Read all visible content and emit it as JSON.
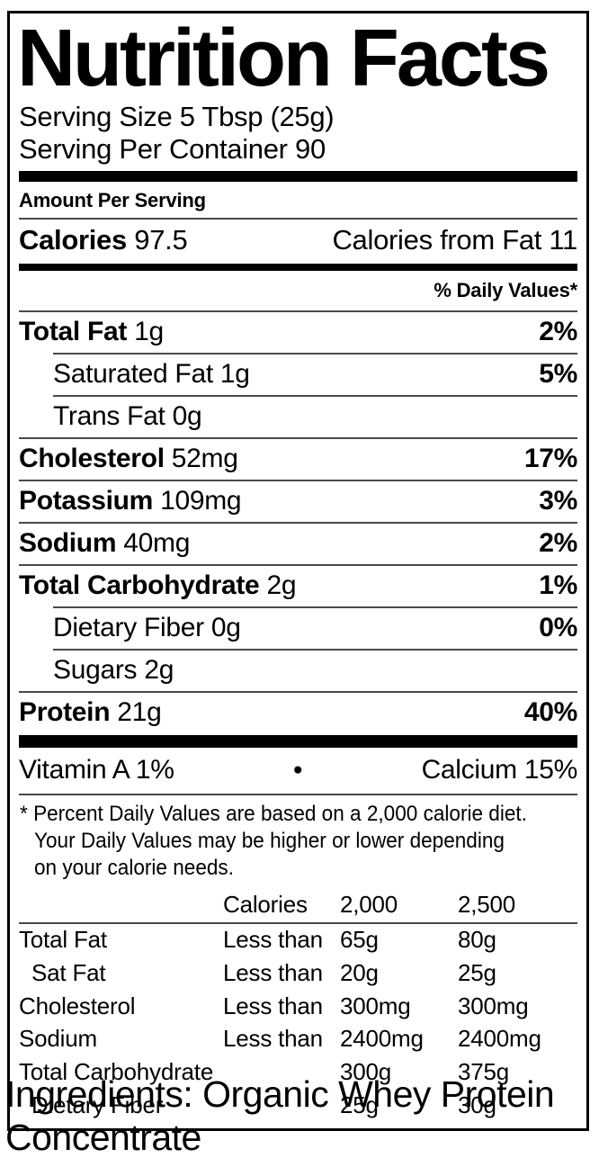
{
  "colors": {
    "text": "#000000",
    "background": "#ffffff",
    "bars": "#000000",
    "hairline": "#4a4a4a"
  },
  "header": {
    "title": "Nutrition Facts",
    "serving_size": "Serving Size 5 Tbsp (25g)",
    "servings_per_container": "Serving Per Container 90"
  },
  "amount_per_serving": "Amount Per Serving",
  "calories": {
    "label": "Calories",
    "value": "97.5",
    "from_fat": "Calories from Fat 11"
  },
  "daily_values_header": "% Daily Values*",
  "nutrients": [
    {
      "label": "Total Fat",
      "amount": "1g",
      "dv": "2%",
      "bold": true,
      "indent": false
    },
    {
      "label": "Saturated Fat",
      "amount": "1g",
      "dv": "5%",
      "bold": false,
      "indent": true
    },
    {
      "label": "Trans Fat",
      "amount": "0g",
      "dv": "",
      "bold": false,
      "indent": true
    },
    {
      "label": "Cholesterol",
      "amount": "52mg",
      "dv": "17%",
      "bold": true,
      "indent": false
    },
    {
      "label": "Potassium",
      "amount": "109mg",
      "dv": "3%",
      "bold": true,
      "indent": false
    },
    {
      "label": "Sodium",
      "amount": "40mg",
      "dv": "2%",
      "bold": true,
      "indent": false
    },
    {
      "label": "Total Carbohydrate",
      "amount": "2g",
      "dv": "1%",
      "bold": true,
      "indent": false
    },
    {
      "label": "Dietary Fiber",
      "amount": "0g",
      "dv": "0%",
      "bold": false,
      "indent": true
    },
    {
      "label": "Sugars",
      "amount": "2g",
      "dv": "",
      "bold": false,
      "indent": true
    },
    {
      "label": "Protein",
      "amount": "21g",
      "dv": "40%",
      "bold": true,
      "indent": false
    }
  ],
  "micronutrients": {
    "left": "Vitamin A 1%",
    "separator": "●",
    "right": "Calcium 15%"
  },
  "footnote": {
    "line1": "* Percent Daily Values are based on a 2,000 calorie diet.",
    "line2": "Your Daily Values may be higher or lower depending",
    "line3": "on your calorie needs."
  },
  "dv_table": {
    "header": {
      "col1": "",
      "col2": "Calories",
      "col3": "2,000",
      "col4": "2,500"
    },
    "rows": [
      {
        "name": "Total Fat",
        "qualifier": "Less than",
        "v2000": "65g",
        "v2500": "80g",
        "indent": false
      },
      {
        "name": "Sat Fat",
        "qualifier": "Less than",
        "v2000": "20g",
        "v2500": "25g",
        "indent": true
      },
      {
        "name": "Cholesterol",
        "qualifier": "Less than",
        "v2000": "300mg",
        "v2500": "300mg",
        "indent": false
      },
      {
        "name": "Sodium",
        "qualifier": "Less than",
        "v2000": "2400mg",
        "v2500": "2400mg",
        "indent": false
      },
      {
        "name": "Total Carbohydrate",
        "qualifier": "",
        "v2000": "300g",
        "v2500": "375g",
        "indent": false
      },
      {
        "name": "Dietary Fiber",
        "qualifier": "",
        "v2000": "25g",
        "v2500": "30g",
        "indent": true
      }
    ]
  },
  "ingredients": "Ingredients: Organic Whey Protein Concentrate"
}
